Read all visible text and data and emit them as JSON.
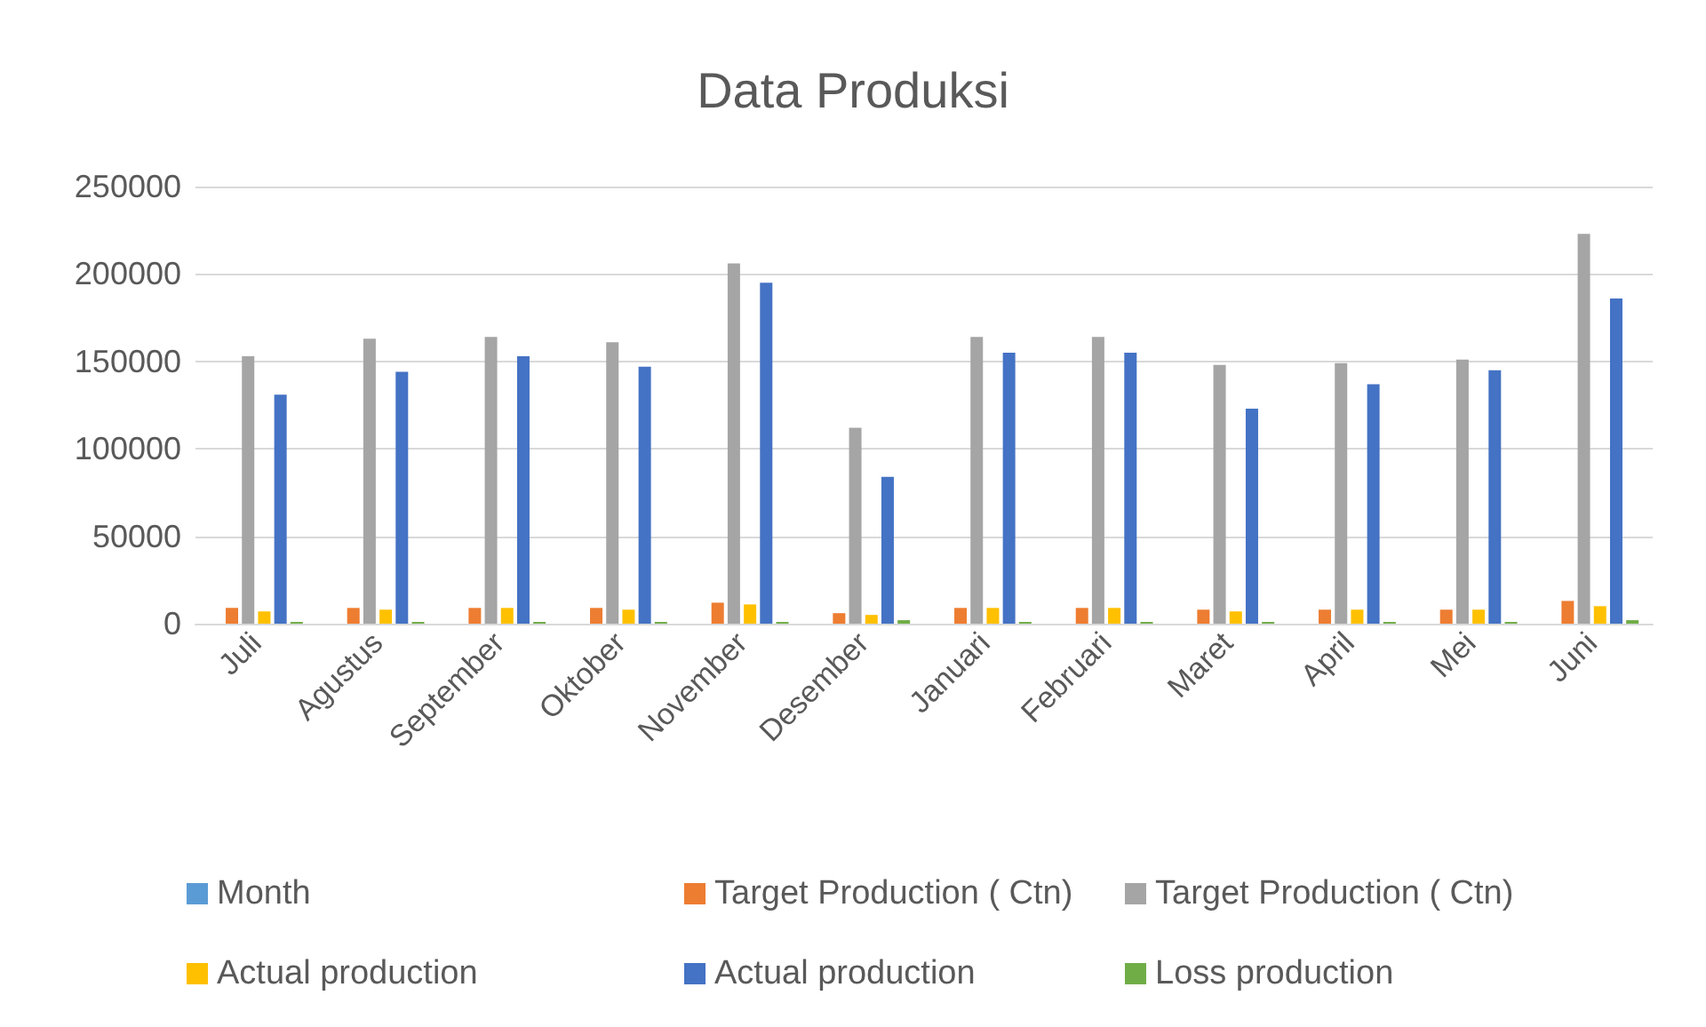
{
  "chart_data": {
    "type": "bar",
    "title": "Data Produksi",
    "categories": [
      "Juli",
      "Agustus",
      "September",
      "Oktober",
      "November",
      "Desember",
      "Januari",
      "Februari",
      "Maret",
      "April",
      "Mei",
      "Juni"
    ],
    "series": [
      {
        "name": "Month",
        "color": "#5b9bd5",
        "values": [
          null,
          null,
          null,
          null,
          null,
          null,
          null,
          null,
          null,
          null,
          null,
          null
        ]
      },
      {
        "name": "Target Production ( Ctn)",
        "color": "#ed7d31",
        "values": [
          9000,
          9000,
          9000,
          9000,
          12000,
          6000,
          9000,
          9000,
          8000,
          8000,
          8000,
          13000
        ]
      },
      {
        "name": "Target Production ( Ctn)",
        "color": "#a5a5a5",
        "values": [
          153000,
          163000,
          164000,
          161000,
          206000,
          112000,
          164000,
          164000,
          148000,
          149000,
          151000,
          223000
        ]
      },
      {
        "name": "Actual production",
        "color": "#ffc000",
        "values": [
          7000,
          8000,
          9000,
          8000,
          11000,
          5000,
          9000,
          9000,
          7000,
          8000,
          8000,
          10000
        ]
      },
      {
        "name": "Actual production",
        "color": "#4472c4",
        "values": [
          131000,
          144000,
          153000,
          147000,
          195000,
          84000,
          155000,
          155000,
          123000,
          137000,
          145000,
          186000
        ]
      },
      {
        "name": "Loss production",
        "color": "#70ad47",
        "values": [
          1000,
          1000,
          1000,
          1000,
          1000,
          2000,
          1000,
          1000,
          1000,
          1000,
          1000,
          2000
        ]
      }
    ],
    "ylim": [
      0,
      250000
    ],
    "yticks": [
      0,
      50000,
      100000,
      150000,
      200000,
      250000
    ],
    "grid": "y",
    "legend": "bottom"
  }
}
